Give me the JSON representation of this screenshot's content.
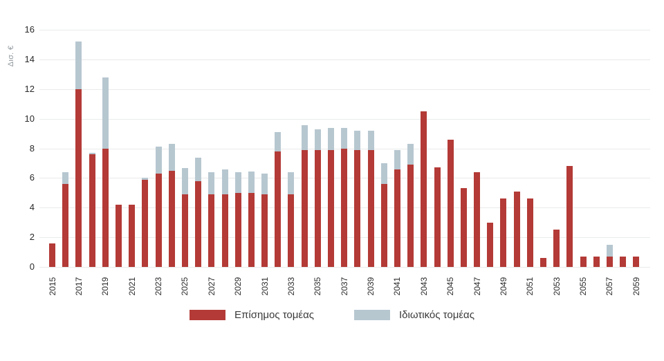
{
  "chart": {
    "y_axis_label": "Δισ. €",
    "y_ticks": [
      16,
      14,
      12,
      10,
      8,
      6,
      4,
      2,
      0
    ],
    "x_tick_labels": [
      "2015",
      "2017",
      "2019",
      "2021",
      "2023",
      "2025",
      "2027",
      "2029",
      "2031",
      "2033",
      "2035",
      "2037",
      "2039",
      "2041",
      "2043",
      "2045",
      "2047",
      "2049",
      "2051",
      "2053",
      "2055",
      "2057",
      "2059"
    ],
    "legend": [
      {
        "label": "Επίσημος τομέας",
        "color": "#b33a36"
      },
      {
        "label": "Ιδιωτικός τομέας",
        "color": "#b7c7d0"
      }
    ],
    "colors": {
      "official": "#b33a36",
      "private": "#b7c7d0",
      "gridline": "#e9eaeb",
      "tick_text": "#2a2a2a",
      "axis_title_text": "#8f979c"
    }
  },
  "chart_data": {
    "type": "bar",
    "stacked": true,
    "title": "",
    "xlabel": "",
    "ylabel": "Δισ. €",
    "ylim": [
      0,
      16
    ],
    "grid": true,
    "legend_position": "bottom",
    "categories": [
      "2015",
      "2016",
      "2017",
      "2018",
      "2019",
      "2020",
      "2021",
      "2022",
      "2023",
      "2024",
      "2025",
      "2026",
      "2027",
      "2028",
      "2029",
      "2030",
      "2031",
      "2032",
      "2033",
      "2034",
      "2035",
      "2036",
      "2037",
      "2038",
      "2039",
      "2040",
      "2041",
      "2042",
      "2043",
      "2044",
      "2045",
      "2046",
      "2047",
      "2048",
      "2049",
      "2050",
      "2051",
      "2052",
      "2053",
      "2054",
      "2055",
      "2056",
      "2057",
      "2058",
      "2059"
    ],
    "series": [
      {
        "name": "Επίσημος τομέας",
        "color": "#b33a36",
        "values": [
          1.6,
          5.6,
          12.0,
          7.6,
          8.0,
          4.2,
          4.2,
          5.9,
          6.3,
          6.5,
          4.9,
          5.8,
          4.9,
          4.9,
          5.0,
          5.0,
          4.9,
          7.8,
          4.9,
          7.9,
          7.9,
          7.9,
          8.0,
          7.9,
          7.9,
          5.6,
          6.6,
          6.9,
          10.5,
          6.7,
          8.6,
          5.3,
          6.4,
          3.0,
          4.6,
          5.1,
          4.6,
          0.6,
          2.5,
          6.8,
          0.7,
          0.7,
          0.7,
          0.7,
          0.7
        ]
      },
      {
        "name": "Ιδιωτικός τομέας",
        "color": "#b7c7d0",
        "values": [
          0,
          0.8,
          3.2,
          0.1,
          4.8,
          0,
          0,
          0.1,
          1.8,
          1.8,
          1.75,
          1.55,
          1.5,
          1.7,
          1.4,
          1.45,
          1.4,
          1.3,
          1.5,
          1.65,
          1.4,
          1.5,
          1.4,
          1.3,
          1.3,
          1.4,
          1.3,
          1.4,
          0,
          0,
          0,
          0,
          0,
          0,
          0,
          0,
          0,
          0,
          0,
          0,
          0,
          0,
          0.8,
          0,
          0
        ]
      }
    ]
  }
}
